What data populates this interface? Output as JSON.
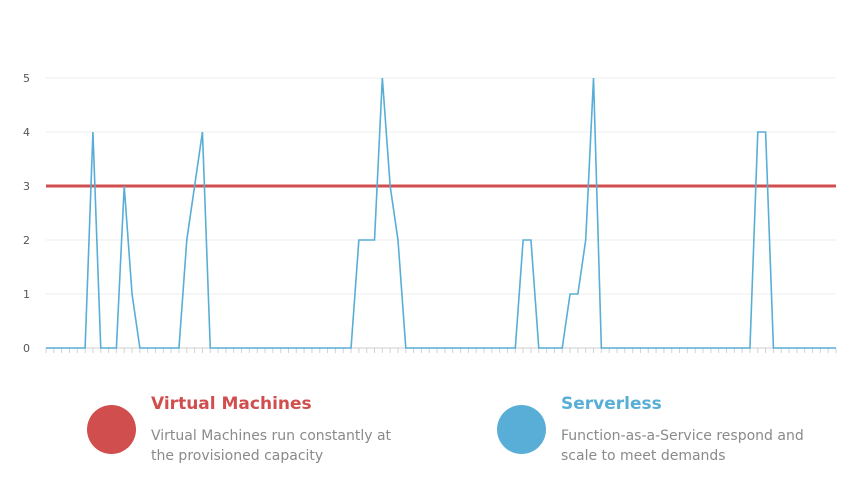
{
  "chart_data": {
    "type": "line",
    "ylim": [
      0,
      5
    ],
    "yticks": [
      "0",
      "1",
      "2",
      "3",
      "4",
      "5"
    ],
    "grid": true,
    "x": [
      0,
      1,
      2,
      3,
      4,
      5,
      6,
      7,
      8,
      9,
      10,
      11,
      12,
      13,
      14,
      15,
      16,
      17,
      18,
      19,
      20,
      21,
      22,
      23,
      24,
      25,
      26,
      27,
      28,
      29,
      30,
      31,
      32,
      33,
      34,
      35,
      36,
      37,
      38,
      39,
      40,
      41,
      42,
      43,
      44,
      45,
      46,
      47,
      48,
      49,
      50,
      51,
      52,
      53,
      54,
      55,
      56,
      57,
      58,
      59,
      60,
      61,
      62,
      63,
      64,
      65,
      66,
      67,
      68,
      69,
      70,
      71,
      72,
      73,
      74,
      75,
      76,
      77,
      78,
      79,
      80,
      81,
      82,
      83,
      84,
      85,
      86,
      87,
      88,
      89,
      90,
      91,
      92,
      93,
      94,
      95,
      96,
      97,
      98,
      99,
      100,
      101
    ],
    "series": [
      {
        "name": "Virtual Machines",
        "color": "#d14e4e",
        "values": [
          3,
          3,
          3,
          3,
          3,
          3,
          3,
          3,
          3,
          3,
          3,
          3,
          3,
          3,
          3,
          3,
          3,
          3,
          3,
          3,
          3,
          3,
          3,
          3,
          3,
          3,
          3,
          3,
          3,
          3,
          3,
          3,
          3,
          3,
          3,
          3,
          3,
          3,
          3,
          3,
          3,
          3,
          3,
          3,
          3,
          3,
          3,
          3,
          3,
          3,
          3,
          3,
          3,
          3,
          3,
          3,
          3,
          3,
          3,
          3,
          3,
          3,
          3,
          3,
          3,
          3,
          3,
          3,
          3,
          3,
          3,
          3,
          3,
          3,
          3,
          3,
          3,
          3,
          3,
          3,
          3,
          3,
          3,
          3,
          3,
          3,
          3,
          3,
          3,
          3,
          3,
          3,
          3,
          3,
          3,
          3,
          3,
          3,
          3,
          3,
          3,
          3
        ]
      },
      {
        "name": "Serverless",
        "color": "#58aed6",
        "values": [
          0,
          0,
          0,
          0,
          0,
          0,
          4,
          0,
          0,
          0,
          3,
          1,
          0,
          0,
          0,
          0,
          0,
          0,
          2,
          3,
          4,
          0,
          0,
          0,
          0,
          0,
          0,
          0,
          0,
          0,
          0,
          0,
          0,
          0,
          0,
          0,
          0,
          0,
          0,
          0,
          2,
          2,
          2,
          5,
          3,
          2,
          0,
          0,
          0,
          0,
          0,
          0,
          0,
          0,
          0,
          0,
          0,
          0,
          0,
          0,
          0,
          2,
          2,
          0,
          0,
          0,
          0,
          1,
          1,
          2,
          5,
          0,
          0,
          0,
          0,
          0,
          0,
          0,
          0,
          0,
          0,
          0,
          0,
          0,
          0,
          0,
          0,
          0,
          0,
          0,
          0,
          4,
          4,
          0,
          0,
          0,
          0,
          0,
          0,
          0,
          0,
          0
        ]
      }
    ]
  },
  "legend": {
    "vm": {
      "title": "Virtual Machines",
      "desc": "Virtual Machines run constantly at the provisioned capacity",
      "color": "#d14e4e"
    },
    "serverless": {
      "title": "Serverless",
      "desc": "Function-as-a-Service respond and scale to meet demands",
      "color": "#58aed6"
    }
  }
}
